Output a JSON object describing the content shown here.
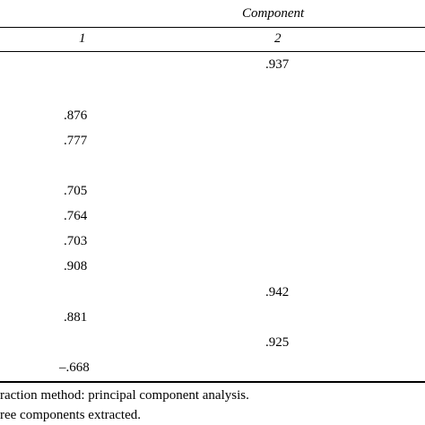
{
  "table": {
    "spanner_header": "Component",
    "column_headers": [
      "1",
      "2"
    ],
    "rows": [
      {
        "c1": "",
        "c2": ".937"
      },
      {
        "c1": "",
        "c2": ""
      },
      {
        "c1": ".876",
        "c2": ""
      },
      {
        "c1": ".777",
        "c2": ""
      },
      {
        "c1": "",
        "c2": ""
      },
      {
        "c1": ".705",
        "c2": ""
      },
      {
        "c1": ".764",
        "c2": ""
      },
      {
        "c1": ".703",
        "c2": ""
      },
      {
        "c1": ".908",
        "c2": ""
      },
      {
        "c1": "",
        "c2": ".942"
      },
      {
        "c1": ".881",
        "c2": ""
      },
      {
        "c1": "",
        "c2": ".925"
      },
      {
        "c1": "–.668",
        "c2": ""
      }
    ]
  },
  "notes": [
    "raction method: principal component analysis.",
    "ree components extracted."
  ]
}
